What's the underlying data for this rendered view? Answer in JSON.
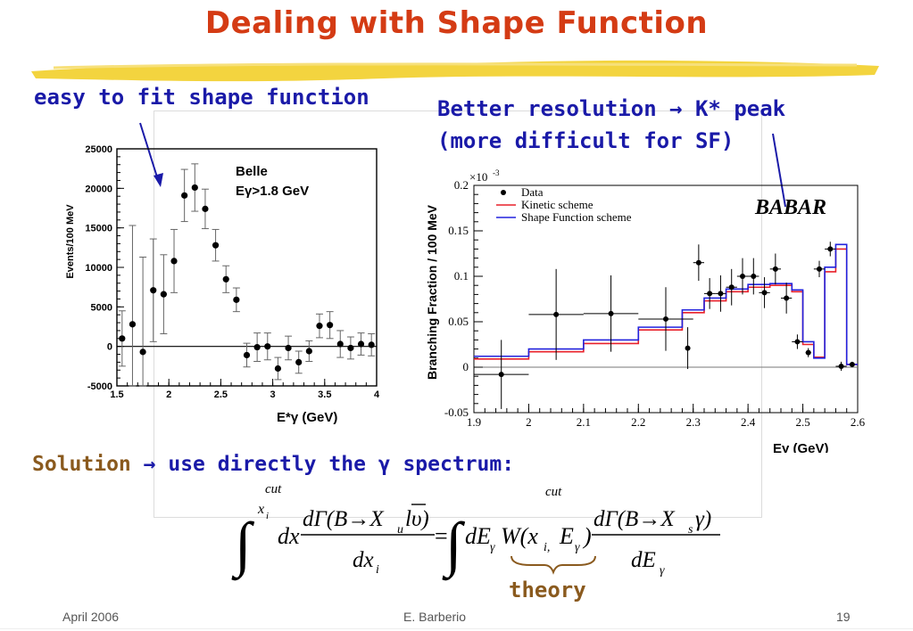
{
  "slide": {
    "title": "Dealing with Shape Function",
    "left_note": "easy to fit shape function",
    "right_note_line1": "Better resolution → K* peak",
    "right_note_line2": "(more difficult for SF)",
    "solution_prefix": "Solution",
    "solution_arrow": "→",
    "solution_text": "use directly the γ spectrum:",
    "theory_label": "theory",
    "footer_left": "April 2006",
    "footer_center": "E. Barberio",
    "footer_right": "19"
  },
  "formula": {
    "upper_limit": "cut",
    "x_i": "x",
    "i_sub": "i",
    "lhs_integrand": "dx",
    "numerator_left": "dΓ(B→X",
    "u_sub": "u",
    "lepton": "lυ)",
    "denominator_left": "dx",
    "equals": "=",
    "dE": "dE",
    "gamma_sub": "γ",
    "W": "W(x",
    "i_comma": "i,",
    "cut_sup": "cut",
    "E": "E",
    "close": ")",
    "numerator_right": "dΓ(B→X",
    "s_sub": "s",
    "gamma_close": "γ)",
    "denominator_right": "dE"
  },
  "chart_data": [
    {
      "type": "scatter",
      "name": "belle",
      "legend_line1": "Belle",
      "legend_line2": "Eγ>1.8 GeV",
      "xlabel": "E*γ (GeV)",
      "ylabel": "Events/100 MeV",
      "xlim": [
        1.5,
        4.0
      ],
      "ylim": [
        -5000,
        25000
      ],
      "x_ticks": [
        "1.5",
        "2",
        "2.5",
        "3",
        "3.5",
        "4"
      ],
      "x_tick_values": [
        1.5,
        2,
        2.5,
        3,
        3.5,
        4
      ],
      "y_ticks": [
        "-5000",
        "0",
        "5000",
        "10000",
        "15000",
        "20000",
        "25000"
      ],
      "y_tick_values": [
        -5000,
        0,
        5000,
        10000,
        15000,
        20000,
        25000
      ],
      "x": [
        1.55,
        1.65,
        1.75,
        1.85,
        1.95,
        2.05,
        2.15,
        2.25,
        2.35,
        2.45,
        2.55,
        2.65,
        2.75,
        2.85,
        2.95,
        3.05,
        3.15,
        3.25,
        3.35,
        3.45,
        3.55,
        3.65,
        3.75,
        3.85,
        3.95
      ],
      "y": [
        1000,
        2800,
        -700,
        7100,
        6600,
        10800,
        19100,
        20100,
        17400,
        12800,
        8500,
        5900,
        -1100,
        -100,
        0,
        -2800,
        -200,
        -2000,
        -600,
        2600,
        2700,
        300,
        -200,
        300,
        200
      ],
      "yerr": [
        3500,
        12500,
        12000,
        6500,
        5000,
        4000,
        3300,
        3000,
        2500,
        2000,
        1700,
        1500,
        1500,
        1800,
        1700,
        1400,
        1500,
        1400,
        1300,
        1500,
        1700,
        1700,
        1400,
        1400,
        1400
      ]
    },
    {
      "type": "line",
      "name": "babar",
      "logo": "BABAR",
      "xlabel": "Eγ (GeV)",
      "ylabel": "Branching Fraction / 100 MeV",
      "y_multiplier": "×10",
      "y_multiplier_exp": "-3",
      "xlim": [
        1.9,
        2.6
      ],
      "ylim": [
        -0.05,
        0.2
      ],
      "x_ticks": [
        "1.9",
        "2",
        "2.1",
        "2.2",
        "2.3",
        "2.4",
        "2.5",
        "2.6"
      ],
      "x_tick_values": [
        1.9,
        2.0,
        2.1,
        2.2,
        2.3,
        2.4,
        2.5,
        2.6
      ],
      "y_ticks": [
        "-0.05",
        "0",
        "0.05",
        "0.1",
        "0.15",
        "0.2"
      ],
      "y_tick_values": [
        -0.05,
        0,
        0.05,
        0.1,
        0.15,
        0.2
      ],
      "legend": [
        "Data",
        "Kinetic scheme",
        "Shape Function scheme"
      ],
      "data": {
        "x": [
          1.95,
          2.05,
          2.15,
          2.25,
          2.29,
          2.31,
          2.33,
          2.35,
          2.37,
          2.39,
          2.41,
          2.43,
          2.45,
          2.47,
          2.49,
          2.51,
          2.53,
          2.55,
          2.57,
          2.59
        ],
        "y": [
          -0.008,
          0.058,
          0.059,
          0.053,
          0.021,
          0.115,
          0.081,
          0.081,
          0.088,
          0.1,
          0.1,
          0.082,
          0.108,
          0.076,
          0.028,
          0.016,
          0.108,
          0.13,
          0.001,
          0.003
        ],
        "xerr": [
          0.05,
          0.05,
          0.05,
          0.05,
          0.0,
          0.01,
          0.01,
          0.01,
          0.01,
          0.01,
          0.01,
          0.01,
          0.01,
          0.01,
          0.01,
          0.005,
          0.01,
          0.01,
          0.01,
          0.005
        ],
        "yerr": [
          0.038,
          0.05,
          0.042,
          0.035,
          0.023,
          0.02,
          0.017,
          0.02,
          0.02,
          0.02,
          0.02,
          0.017,
          0.017,
          0.017,
          0.008,
          0.005,
          0.009,
          0.008,
          0.005,
          0.003
        ]
      },
      "bin_edges": [
        1.9,
        2.0,
        2.1,
        2.2,
        2.28,
        2.32,
        2.36,
        2.4,
        2.44,
        2.48,
        2.5,
        2.52,
        2.54,
        2.56,
        2.58,
        2.6
      ],
      "series": [
        {
          "name": "Kinetic scheme",
          "color": "#e8202a",
          "values": [
            0.009,
            0.017,
            0.026,
            0.041,
            0.06,
            0.073,
            0.083,
            0.088,
            0.09,
            0.083,
            0.025,
            0.011,
            0.105,
            0.13,
            0.003
          ]
        },
        {
          "name": "Shape Function scheme",
          "color": "#2222dd",
          "values": [
            0.012,
            0.02,
            0.03,
            0.044,
            0.063,
            0.076,
            0.086,
            0.091,
            0.092,
            0.085,
            0.028,
            0.01,
            0.11,
            0.135,
            0.003
          ]
        }
      ]
    }
  ]
}
